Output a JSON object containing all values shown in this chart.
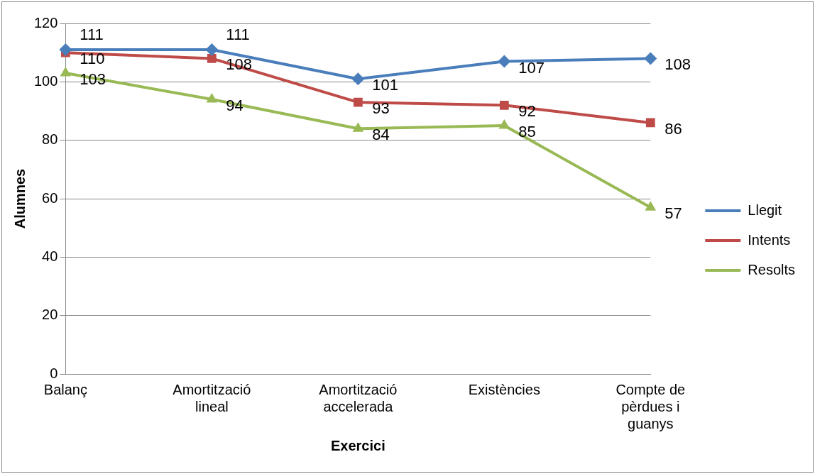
{
  "chart_data": {
    "type": "line",
    "xlabel": "Exercici",
    "ylabel": "Alumnes",
    "categories": [
      "Balanç",
      "Amortització lineal",
      "Amortització accelerada",
      "Existències",
      "Compte de pèrdues i guanys"
    ],
    "series": [
      {
        "name": "Llegit",
        "color": "#4a7ebb",
        "marker": "diamond",
        "values": [
          111,
          111,
          101,
          107,
          108
        ]
      },
      {
        "name": "Intents",
        "color": "#be4b48",
        "marker": "square",
        "values": [
          110,
          108,
          93,
          92,
          86
        ]
      },
      {
        "name": "Resolts",
        "color": "#98b954",
        "marker": "triangle",
        "values": [
          103,
          94,
          84,
          85,
          57
        ]
      }
    ],
    "ylim": [
      0,
      120
    ],
    "yticks": [
      0,
      20,
      40,
      60,
      80,
      100,
      120
    ],
    "grid": "y",
    "legend": "right",
    "data_labels": true
  }
}
